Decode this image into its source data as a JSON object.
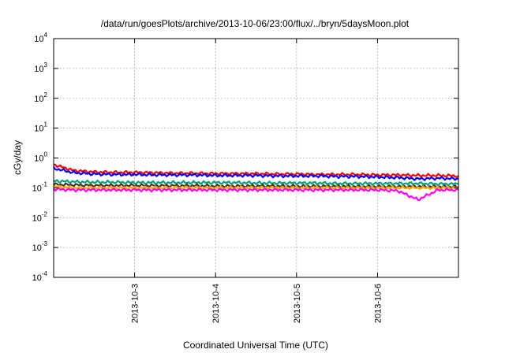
{
  "chart_data": {
    "type": "line",
    "title": "/data/run/goesPlots/archive/2013-10-06/23:00/flux/../bryn/5daysMoon.plot",
    "xlabel": "Coordinated Universal Time (UTC)",
    "ylabel": "cGy/day",
    "yscale": "log",
    "ylim": [
      0.0001,
      10000
    ],
    "xlim": [
      "2013-10-02T00:00",
      "2013-10-07T00:00"
    ],
    "y_ticks": [
      {
        "base": "10",
        "exp": "-4"
      },
      {
        "base": "10",
        "exp": "-3"
      },
      {
        "base": "10",
        "exp": "-2"
      },
      {
        "base": "10",
        "exp": "-1"
      },
      {
        "base": "10",
        "exp": "0"
      },
      {
        "base": "10",
        "exp": "1"
      },
      {
        "base": "10",
        "exp": "2"
      },
      {
        "base": "10",
        "exp": "3"
      },
      {
        "base": "10",
        "exp": "4"
      }
    ],
    "x_ticks": [
      "2013-10-3",
      "2013-10-4",
      "2013-10-5",
      "2013-10-6"
    ],
    "x_tick_dates": [
      "2013-10-03T00:00",
      "2013-10-04T00:00",
      "2013-10-05T00:00",
      "2013-10-06T00:00"
    ],
    "grid": true,
    "legend": "none",
    "x": [
      "2013-10-02T00:00",
      "2013-10-02T06:00",
      "2013-10-02T12:00",
      "2013-10-02T18:00",
      "2013-10-03T00:00",
      "2013-10-03T06:00",
      "2013-10-03T12:00",
      "2013-10-03T18:00",
      "2013-10-04T00:00",
      "2013-10-04T06:00",
      "2013-10-04T12:00",
      "2013-10-04T18:00",
      "2013-10-05T00:00",
      "2013-10-05T06:00",
      "2013-10-05T12:00",
      "2013-10-05T18:00",
      "2013-10-06T00:00",
      "2013-10-06T06:00",
      "2013-10-06T12:00",
      "2013-10-06T18:00",
      "2013-10-07T00:00"
    ],
    "series": [
      {
        "color": "#ff0000",
        "values": [
          0.6,
          0.38,
          0.34,
          0.33,
          0.33,
          0.32,
          0.31,
          0.31,
          0.3,
          0.3,
          0.3,
          0.29,
          0.29,
          0.28,
          0.28,
          0.28,
          0.27,
          0.27,
          0.26,
          0.26,
          0.25
        ]
      },
      {
        "color": "#0000ff",
        "values": [
          0.45,
          0.32,
          0.29,
          0.28,
          0.28,
          0.27,
          0.27,
          0.27,
          0.26,
          0.26,
          0.26,
          0.25,
          0.25,
          0.25,
          0.24,
          0.24,
          0.23,
          0.22,
          0.2,
          0.21,
          0.2
        ]
      },
      {
        "color": "#00a080",
        "values": [
          0.17,
          0.16,
          0.155,
          0.155,
          0.15,
          0.15,
          0.15,
          0.15,
          0.15,
          0.15,
          0.145,
          0.145,
          0.145,
          0.145,
          0.14,
          0.14,
          0.14,
          0.14,
          0.14,
          0.135,
          0.135
        ]
      },
      {
        "color": "#4d3319",
        "values": [
          0.13,
          0.125,
          0.12,
          0.12,
          0.12,
          0.118,
          0.118,
          0.118,
          0.115,
          0.115,
          0.115,
          0.115,
          0.113,
          0.113,
          0.113,
          0.11,
          0.11,
          0.11,
          0.11,
          0.108,
          0.108
        ]
      },
      {
        "color": "#ffa500",
        "values": [
          0.11,
          0.1,
          0.1,
          0.1,
          0.1,
          0.1,
          0.1,
          0.1,
          0.1,
          0.1,
          0.1,
          0.1,
          0.1,
          0.1,
          0.1,
          0.1,
          0.1,
          0.1,
          0.1,
          0.1,
          0.1
        ]
      },
      {
        "color": "#ff00ff",
        "values": [
          0.09,
          0.085,
          0.085,
          0.085,
          0.085,
          0.085,
          0.085,
          0.085,
          0.085,
          0.085,
          0.085,
          0.085,
          0.085,
          0.085,
          0.085,
          0.085,
          0.085,
          0.08,
          0.04,
          0.085,
          0.085
        ]
      }
    ]
  }
}
